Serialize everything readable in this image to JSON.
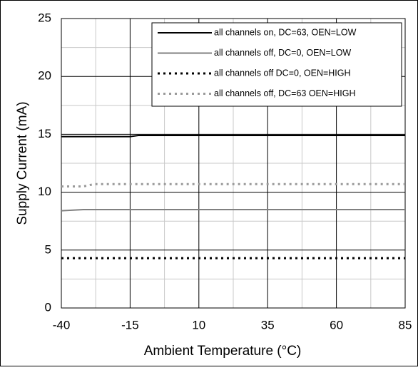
{
  "chart_data": {
    "type": "line",
    "xlabel": "Ambient Temperature (°C)",
    "ylabel": "Supply Current (mA)",
    "xlim": [
      -40,
      85
    ],
    "xticks": [
      -40,
      -15,
      10,
      35,
      60,
      85
    ],
    "xminorticks": [
      -27.5,
      -2.5,
      22.5,
      47.5,
      72.5
    ],
    "ylim": [
      0,
      25
    ],
    "yticks": [
      0,
      5,
      10,
      15,
      20,
      25
    ],
    "yminorticks": [
      2.5,
      7.5,
      12.5,
      17.5,
      22.5
    ],
    "grid": true,
    "legend": "upper right",
    "series": [
      {
        "name": "all channels on, DC=63, OEN=LOW",
        "color": "#000000",
        "style": "solid",
        "x": [
          -40,
          -15,
          -12,
          85
        ],
        "values": [
          14.8,
          14.8,
          14.9,
          14.9
        ]
      },
      {
        "name": "all channels off, DC=0, OEN=LOW",
        "color": "#808080",
        "style": "solid",
        "x": [
          -40,
          -32,
          85
        ],
        "values": [
          8.4,
          8.5,
          8.5
        ]
      },
      {
        "name": "all channels off DC=0, OEN=HIGH",
        "color": "#000000",
        "style": "dotted",
        "x": [
          -40,
          85
        ],
        "values": [
          4.3,
          4.3
        ]
      },
      {
        "name": "all channels off, DC=63 OEN=HIGH",
        "color": "#999999",
        "style": "dotted",
        "x": [
          -40,
          -32,
          -28,
          85
        ],
        "values": [
          10.5,
          10.5,
          10.7,
          10.7
        ]
      }
    ]
  }
}
